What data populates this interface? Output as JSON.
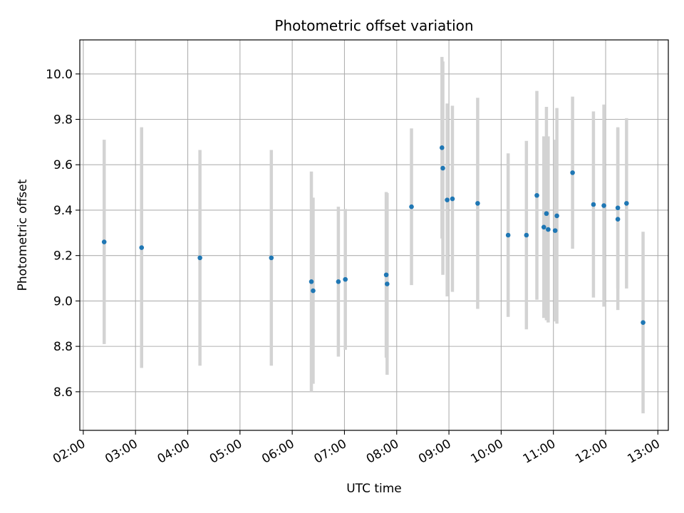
{
  "chart_data": {
    "type": "scatter",
    "title": "Photometric offset variation",
    "xlabel": "UTC time",
    "ylabel": "Photometric offset",
    "xlim": [
      "01:56",
      "13:12"
    ],
    "ylim": [
      8.43,
      10.15
    ],
    "grid": true,
    "x_tick_labels": [
      "02:00",
      "03:00",
      "04:00",
      "05:00",
      "06:00",
      "07:00",
      "08:00",
      "09:00",
      "10:00",
      "11:00",
      "12:00",
      "13:00"
    ],
    "y_tick_labels": [
      "8.6",
      "8.8",
      "9.0",
      "9.2",
      "9.4",
      "9.6",
      "9.8",
      "10.0"
    ],
    "colors": {
      "marker": "#1f77b4",
      "errorbar": "#d3d3d3",
      "grid": "#b0b0b0"
    },
    "series": [
      {
        "points": [
          {
            "x": "02:24",
            "y": 9.26,
            "err": 0.45
          },
          {
            "x": "03:07",
            "y": 9.235,
            "err": 0.53
          },
          {
            "x": "04:14",
            "y": 9.19,
            "err": 0.475
          },
          {
            "x": "05:36",
            "y": 9.19,
            "err": 0.475
          },
          {
            "x": "06:22",
            "y": 9.085,
            "err": 0.485
          },
          {
            "x": "06:24",
            "y": 9.045,
            "err": 0.41
          },
          {
            "x": "06:53",
            "y": 9.085,
            "err": 0.33
          },
          {
            "x": "07:01",
            "y": 9.095,
            "err": 0.31
          },
          {
            "x": "07:48",
            "y": 9.115,
            "err": 0.365
          },
          {
            "x": "07:49",
            "y": 9.075,
            "err": 0.4
          },
          {
            "x": "08:17",
            "y": 9.415,
            "err": 0.345
          },
          {
            "x": "08:52",
            "y": 9.675,
            "err": 0.4
          },
          {
            "x": "08:53",
            "y": 9.585,
            "err": 0.47
          },
          {
            "x": "08:58",
            "y": 9.445,
            "err": 0.425
          },
          {
            "x": "09:04",
            "y": 9.45,
            "err": 0.41
          },
          {
            "x": "09:33",
            "y": 9.43,
            "err": 0.465
          },
          {
            "x": "10:08",
            "y": 9.29,
            "err": 0.36
          },
          {
            "x": "10:29",
            "y": 9.29,
            "err": 0.415
          },
          {
            "x": "10:41",
            "y": 9.465,
            "err": 0.46
          },
          {
            "x": "10:49",
            "y": 9.325,
            "err": 0.4
          },
          {
            "x": "10:52",
            "y": 9.385,
            "err": 0.47
          },
          {
            "x": "10:54",
            "y": 9.315,
            "err": 0.41
          },
          {
            "x": "11:02",
            "y": 9.31,
            "err": 0.4
          },
          {
            "x": "11:04",
            "y": 9.375,
            "err": 0.475
          },
          {
            "x": "11:22",
            "y": 9.565,
            "err": 0.335
          },
          {
            "x": "11:46",
            "y": 9.425,
            "err": 0.41
          },
          {
            "x": "11:58",
            "y": 9.42,
            "err": 0.445
          },
          {
            "x": "12:14",
            "y": 9.41,
            "err": 0.355
          },
          {
            "x": "12:14",
            "y": 9.36,
            "err": 0.4
          },
          {
            "x": "12:24",
            "y": 9.43,
            "err": 0.375
          },
          {
            "x": "12:43",
            "y": 8.905,
            "err": 0.4
          }
        ]
      }
    ]
  }
}
